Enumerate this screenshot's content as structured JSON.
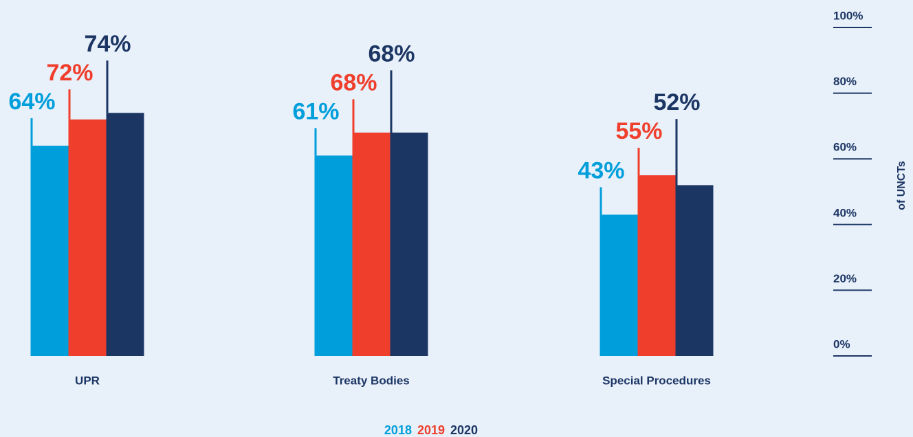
{
  "chart_data": {
    "type": "bar",
    "categories": [
      "UPR",
      "Treaty Bodies",
      "Special Procedures"
    ],
    "series": [
      {
        "name": "2018",
        "color": "#009edb",
        "values": [
          64,
          61,
          43
        ],
        "value_labels": [
          "64%",
          "61%",
          "43%"
        ]
      },
      {
        "name": "2019",
        "color": "#ef3f2c",
        "values": [
          72,
          68,
          55
        ],
        "value_labels": [
          "72%",
          "68%",
          "55%"
        ]
      },
      {
        "name": "2020",
        "color": "#1c3664",
        "values": [
          74,
          68,
          52
        ],
        "value_labels": [
          "74%",
          "68%",
          "52%"
        ]
      }
    ],
    "ylim": [
      0,
      100
    ],
    "yticks": [
      {
        "value": 0,
        "label": "0%"
      },
      {
        "value": 20,
        "label": "20%"
      },
      {
        "value": 40,
        "label": "40%"
      },
      {
        "value": 60,
        "label": "60%"
      },
      {
        "value": 80,
        "label": "80%"
      },
      {
        "value": 100,
        "label": "100%"
      }
    ],
    "y_axis_label": "of UNCTs",
    "y_axis_side": "right"
  }
}
